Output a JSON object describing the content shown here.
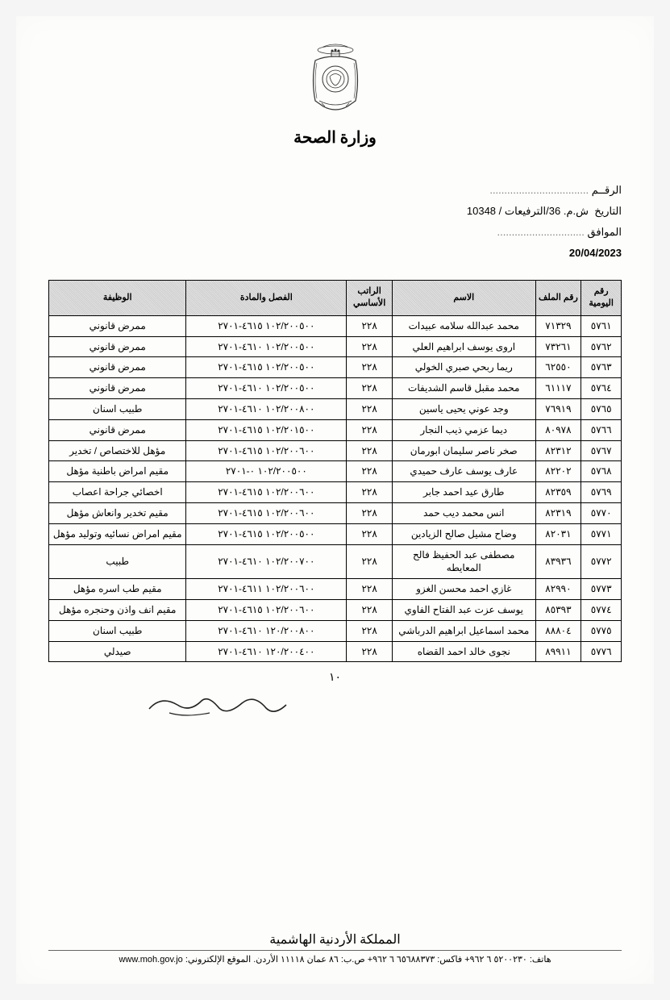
{
  "header": {
    "ministry": "وزارة الصحة",
    "ref_label": "الرقــم",
    "ref_dots": "..................................",
    "date_label": "التاريخ",
    "date_value": "ش.م. 36/الترفيعات / 10348",
    "approved_label": "الموافق",
    "approved_dots": "..............................",
    "date_iso": "20/04/2023"
  },
  "table": {
    "columns": [
      "رقم اليومية",
      "رقم الملف",
      "الاسم",
      "الراتب الأساسي",
      "الفصل والمادة",
      "الوظيفة"
    ],
    "rows": [
      [
        "٥٧٦١",
        "٧١٣٢٩",
        "محمد عبدالله سلامه عبيدات",
        "٢٢٨",
        "١٠٢/٢٠٠٥٠٠ ٤٦١٥-٢٧٠١",
        "ممرض قانوني"
      ],
      [
        "٥٧٦٢",
        "٧٣٢٦١",
        "اروى يوسف ابراهيم العلي",
        "٢٢٨",
        "١٠٢/٢٠٠٥٠٠ ٤٦١٠-٢٧٠١",
        "ممرض قانوني"
      ],
      [
        "٥٧٦٣",
        "٦٢٥٥٠",
        "ريما ربحي صبري الخولي",
        "٢٢٨",
        "١٠٢/٢٠٠٥٠٠ ٤٦١٥-٢٧٠١",
        "ممرض قانوني"
      ],
      [
        "٥٧٦٤",
        "٦١١١٧",
        "محمد مقبل قاسم الشديفات",
        "٢٢٨",
        "١٠٢/٢٠٠٥٠٠ ٤٦١٠-٢٧٠١",
        "ممرض قانوني"
      ],
      [
        "٥٧٦٥",
        "٧٦٩١٩",
        "وجد عوني يحيى ياسين",
        "٢٢٨",
        "١٠٢/٢٠٠٨٠٠ ٤٦١٠-٢٧٠١",
        "طبيب اسنان"
      ],
      [
        "٥٧٦٦",
        "٨٠٩٧٨",
        "ديما عزمي ذيب النجار",
        "٢٢٨",
        "١٠٢/٢٠١٥٠٠ ٤٦١٥-٢٧٠١",
        "ممرض قانوني"
      ],
      [
        "٥٧٦٧",
        "٨٢٣١٢",
        "صخر ناصر سليمان ابورمان",
        "٢٢٨",
        "١٠٢/٢٠٠٦٠٠ ٤٦١٥-٢٧٠١",
        "مؤهل للاختصاص / تخدير"
      ],
      [
        "٥٧٦٨",
        "٨٢٢٠٢",
        "عارف يوسف عارف حميدي",
        "٢٢٨",
        "١٠٢/٢٠٠٥٠٠ ٠-٢٧٠١",
        "مقيم امراض باطنية مؤهل"
      ],
      [
        "٥٧٦٩",
        "٨٢٣٥٩",
        "طارق عيد احمد جابر",
        "٢٢٨",
        "١٠٢/٢٠٠٦٠٠ ٤٦١٥-٢٧٠١",
        "اخصائي جراحة اعصاب"
      ],
      [
        "٥٧٧٠",
        "٨٢٣١٩",
        "انس محمد ديب حمد",
        "٢٢٨",
        "١٠٢/٢٠٠٦٠٠ ٤٦١٥-٢٧٠١",
        "مقيم تخدير وانعاش مؤهل"
      ],
      [
        "٥٧٧١",
        "٨٢٠٣١",
        "وضاح مشيل صالح الزيادين",
        "٢٢٨",
        "١٠٢/٢٠٠٥٠٠ ٤٦١٥-٢٧٠١",
        "مقيم امراض نسائيه وتوليد مؤهل"
      ],
      [
        "٥٧٧٢",
        "٨٣٩٣٦",
        "مصطفى عبد الحفيظ فالح المعايطه",
        "٢٢٨",
        "١٠٢/٢٠٠٧٠٠ ٤٦١٠-٢٧٠١",
        "طبيب"
      ],
      [
        "٥٧٧٣",
        "٨٢٩٩٠",
        "غازي احمد محسن الغزو",
        "٢٢٨",
        "١٠٢/٢٠٠٦٠٠ ٤٦١١-٢٧٠١",
        "مقيم طب اسره مؤهل"
      ],
      [
        "٥٧٧٤",
        "٨٥٣٩٣",
        "يوسف عزت عبد الفتاح الفاوي",
        "٢٢٨",
        "١٠٢/٢٠٠٦٠٠ ٤٦١٥-٢٧٠١",
        "مقيم انف واذن وحنجره مؤهل"
      ],
      [
        "٥٧٧٥",
        "٨٨٨٠٤",
        "محمد اسماعيل ابراهيم الدرباشي",
        "٢٢٨",
        "١٢٠/٢٠٠٨٠٠ ٤٦١٠-٢٧٠١",
        "طبيب اسنان"
      ],
      [
        "٥٧٧٦",
        "٨٩٩١١",
        "نجوى خالد احمد القضاه",
        "٢٢٨",
        "١٢٠/٢٠٠٤٠٠ ٤٦١٠-٢٧٠١",
        "صيدلي"
      ]
    ]
  },
  "page_number": "١٠",
  "footer": {
    "country": "المملكة الأردنية الهاشمية",
    "contact": "هاتف: ٥٢٠٠٢٣٠ ٦ ٩٦٢+  فاكس: ٦٥٦٨٨٣٧٣ ٦ ٩٦٢+  ص.ب: ٨٦ عمان ١١١١٨ الأردن. الموقع الإلكتروني: ",
    "website": "www.moh.gov.jo"
  }
}
